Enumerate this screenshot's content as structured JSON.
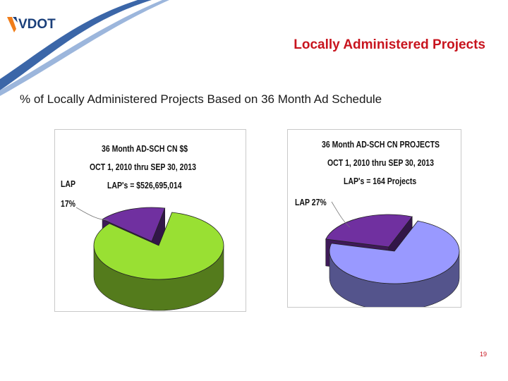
{
  "header": {
    "logo_text": "VDOT",
    "title": "Locally Administered Projects"
  },
  "subtitle": "% of Locally Administered Projects Based on 36 Month Ad Schedule",
  "chart_data": [
    {
      "type": "pie",
      "title_lines": [
        "36 Month AD-SCH CN $$",
        "OCT 1, 2010 thru SEP 30,  2013",
        "LAP's = $526,695,014"
      ],
      "slice_label_lines": [
        "LAP",
        "17%"
      ],
      "slices": [
        {
          "label": "LAP",
          "value": 17,
          "color": "#7030a0"
        },
        {
          "label": "",
          "value": 83,
          "color": "#99e033"
        }
      ]
    },
    {
      "type": "pie",
      "title_lines": [
        "36 Month AD-SCH CN PROJECTS",
        "OCT 1, 2010 thru SEP 30, 2013",
        "LAP's = 164 Projects"
      ],
      "slice_label_lines": [
        "LAP 27%"
      ],
      "slices": [
        {
          "label": "LAP",
          "value": 27,
          "color": "#7030a0"
        },
        {
          "label": "",
          "value": 73,
          "color": "#9999ff"
        }
      ]
    }
  ],
  "footer": {
    "page_number": "19"
  }
}
